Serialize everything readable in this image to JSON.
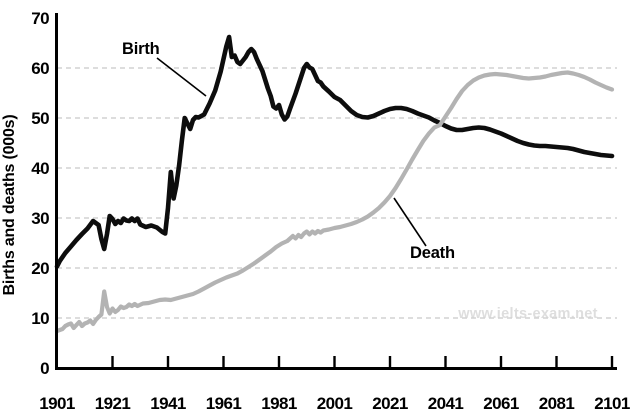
{
  "chart": {
    "y_axis_title": "Births and deaths (000s)",
    "series_labels": {
      "birth": "Birth",
      "death": "Death"
    },
    "watermark": "www.ielts-exam.net",
    "colors": {
      "birth_line": "#0d0d0d",
      "death_line": "#b3b3b3",
      "gridline": "#d2d2d2",
      "axis": "#000000",
      "tick_text": "#000000",
      "watermark": "#dedede"
    }
  },
  "chart_data": {
    "type": "line",
    "title": "",
    "xlabel": "",
    "ylabel": "Births and deaths (000s)",
    "xlim": [
      1901,
      2101
    ],
    "ylim": [
      0,
      70
    ],
    "xticks": [
      1901,
      1921,
      1941,
      1961,
      1981,
      2001,
      2021,
      2041,
      2061,
      2081,
      2101
    ],
    "yticks": [
      0,
      10,
      20,
      30,
      40,
      50,
      60,
      70
    ],
    "grid": "horizontal-dashed",
    "legend_position": "annotated-on-lines",
    "series": [
      {
        "name": "Birth",
        "color": "#0d0d0d",
        "points": [
          [
            1901,
            20.3
          ],
          [
            1902,
            21.4
          ],
          [
            1904,
            23.0
          ],
          [
            1906,
            24.3
          ],
          [
            1908,
            25.6
          ],
          [
            1910,
            26.8
          ],
          [
            1912,
            27.9
          ],
          [
            1914,
            29.4
          ],
          [
            1915,
            29.0
          ],
          [
            1916,
            28.6
          ],
          [
            1917,
            25.8
          ],
          [
            1918,
            23.8
          ],
          [
            1919,
            26.8
          ],
          [
            1920,
            30.4
          ],
          [
            1921,
            29.8
          ],
          [
            1922,
            28.8
          ],
          [
            1923,
            29.4
          ],
          [
            1924,
            29.0
          ],
          [
            1925,
            29.9
          ],
          [
            1926,
            29.5
          ],
          [
            1927,
            29.4
          ],
          [
            1928,
            29.9
          ],
          [
            1929,
            29.4
          ],
          [
            1930,
            29.9
          ],
          [
            1931,
            28.7
          ],
          [
            1933,
            28.2
          ],
          [
            1935,
            28.5
          ],
          [
            1937,
            28.1
          ],
          [
            1939,
            27.2
          ],
          [
            1940,
            26.9
          ],
          [
            1941,
            32.0
          ],
          [
            1942,
            39.2
          ],
          [
            1943,
            33.9
          ],
          [
            1944,
            36.5
          ],
          [
            1945,
            40.5
          ],
          [
            1946,
            45.5
          ],
          [
            1947,
            50.0
          ],
          [
            1948,
            48.9
          ],
          [
            1949,
            47.8
          ],
          [
            1950,
            49.6
          ],
          [
            1951,
            50.2
          ],
          [
            1952,
            50.1
          ],
          [
            1953,
            50.4
          ],
          [
            1954,
            50.7
          ],
          [
            1956,
            52.9
          ],
          [
            1958,
            55.5
          ],
          [
            1960,
            59.3
          ],
          [
            1962,
            64.3
          ],
          [
            1963,
            66.2
          ],
          [
            1964,
            62.2
          ],
          [
            1965,
            62.5
          ],
          [
            1966,
            61.2
          ],
          [
            1967,
            60.8
          ],
          [
            1969,
            62.2
          ],
          [
            1970,
            63.2
          ],
          [
            1971,
            63.8
          ],
          [
            1972,
            63.2
          ],
          [
            1973,
            61.8
          ],
          [
            1975,
            59.4
          ],
          [
            1977,
            55.9
          ],
          [
            1978,
            54.4
          ],
          [
            1979,
            52.3
          ],
          [
            1980,
            51.9
          ],
          [
            1981,
            52.6
          ],
          [
            1982,
            50.7
          ],
          [
            1983,
            49.7
          ],
          [
            1984,
            50.3
          ],
          [
            1985,
            51.9
          ],
          [
            1987,
            54.9
          ],
          [
            1989,
            58.3
          ],
          [
            1990,
            60.0
          ],
          [
            1991,
            60.8
          ],
          [
            1992,
            60.1
          ],
          [
            1993,
            59.8
          ],
          [
            1994,
            58.6
          ],
          [
            1995,
            57.4
          ],
          [
            1996,
            57.1
          ],
          [
            1997,
            56.3
          ],
          [
            1999,
            55.3
          ],
          [
            2001,
            54.2
          ],
          [
            2003,
            53.6
          ],
          [
            2005,
            52.5
          ],
          [
            2007,
            51.4
          ],
          [
            2009,
            50.6
          ],
          [
            2011,
            50.2
          ],
          [
            2013,
            50.1
          ],
          [
            2015,
            50.4
          ],
          [
            2017,
            50.9
          ],
          [
            2019,
            51.4
          ],
          [
            2021,
            51.8
          ],
          [
            2023,
            52.0
          ],
          [
            2025,
            52.0
          ],
          [
            2027,
            51.8
          ],
          [
            2029,
            51.4
          ],
          [
            2031,
            50.9
          ],
          [
            2033,
            50.5
          ],
          [
            2035,
            50.1
          ],
          [
            2037,
            49.5
          ],
          [
            2039,
            49.0
          ],
          [
            2041,
            48.4
          ],
          [
            2043,
            47.9
          ],
          [
            2045,
            47.6
          ],
          [
            2047,
            47.6
          ],
          [
            2049,
            47.8
          ],
          [
            2051,
            48.0
          ],
          [
            2053,
            48.1
          ],
          [
            2055,
            48.0
          ],
          [
            2057,
            47.7
          ],
          [
            2059,
            47.3
          ],
          [
            2061,
            46.9
          ],
          [
            2063,
            46.4
          ],
          [
            2065,
            45.9
          ],
          [
            2067,
            45.4
          ],
          [
            2069,
            45.0
          ],
          [
            2071,
            44.7
          ],
          [
            2073,
            44.5
          ],
          [
            2075,
            44.4
          ],
          [
            2077,
            44.4
          ],
          [
            2079,
            44.3
          ],
          [
            2081,
            44.2
          ],
          [
            2083,
            44.1
          ],
          [
            2085,
            44.0
          ],
          [
            2087,
            43.8
          ],
          [
            2089,
            43.5
          ],
          [
            2091,
            43.2
          ],
          [
            2093,
            43.0
          ],
          [
            2095,
            42.8
          ],
          [
            2097,
            42.6
          ],
          [
            2099,
            42.5
          ],
          [
            2101,
            42.4
          ]
        ]
      },
      {
        "name": "Death",
        "color": "#b3b3b3",
        "points": [
          [
            1901,
            7.4
          ],
          [
            1902,
            7.6
          ],
          [
            1903,
            7.8
          ],
          [
            1904,
            8.4
          ],
          [
            1905,
            8.7
          ],
          [
            1906,
            8.9
          ],
          [
            1907,
            8.0
          ],
          [
            1908,
            8.6
          ],
          [
            1909,
            9.2
          ],
          [
            1910,
            8.4
          ],
          [
            1911,
            8.9
          ],
          [
            1912,
            9.1
          ],
          [
            1913,
            9.5
          ],
          [
            1914,
            8.8
          ],
          [
            1915,
            9.6
          ],
          [
            1916,
            10.2
          ],
          [
            1917,
            10.7
          ],
          [
            1918,
            15.3
          ],
          [
            1919,
            12.2
          ],
          [
            1920,
            10.9
          ],
          [
            1921,
            11.9
          ],
          [
            1922,
            11.2
          ],
          [
            1923,
            11.6
          ],
          [
            1924,
            12.3
          ],
          [
            1925,
            12.0
          ],
          [
            1926,
            12.2
          ],
          [
            1927,
            12.7
          ],
          [
            1928,
            12.4
          ],
          [
            1929,
            12.8
          ],
          [
            1930,
            12.4
          ],
          [
            1932,
            12.9
          ],
          [
            1934,
            13.0
          ],
          [
            1936,
            13.3
          ],
          [
            1938,
            13.6
          ],
          [
            1940,
            13.7
          ],
          [
            1942,
            13.6
          ],
          [
            1944,
            13.9
          ],
          [
            1946,
            14.2
          ],
          [
            1948,
            14.5
          ],
          [
            1950,
            14.8
          ],
          [
            1952,
            15.3
          ],
          [
            1954,
            15.9
          ],
          [
            1956,
            16.5
          ],
          [
            1958,
            17.1
          ],
          [
            1960,
            17.6
          ],
          [
            1962,
            18.1
          ],
          [
            1964,
            18.5
          ],
          [
            1966,
            18.9
          ],
          [
            1968,
            19.5
          ],
          [
            1970,
            20.2
          ],
          [
            1972,
            20.9
          ],
          [
            1974,
            21.7
          ],
          [
            1976,
            22.5
          ],
          [
            1978,
            23.3
          ],
          [
            1980,
            24.2
          ],
          [
            1982,
            24.9
          ],
          [
            1984,
            25.4
          ],
          [
            1985,
            25.9
          ],
          [
            1986,
            26.4
          ],
          [
            1987,
            25.9
          ],
          [
            1988,
            26.6
          ],
          [
            1989,
            26.2
          ],
          [
            1990,
            26.9
          ],
          [
            1991,
            27.3
          ],
          [
            1992,
            26.7
          ],
          [
            1993,
            27.3
          ],
          [
            1994,
            26.9
          ],
          [
            1995,
            27.4
          ],
          [
            1996,
            27.1
          ],
          [
            1997,
            27.5
          ],
          [
            1999,
            27.7
          ],
          [
            2001,
            28.0
          ],
          [
            2003,
            28.2
          ],
          [
            2005,
            28.5
          ],
          [
            2007,
            28.8
          ],
          [
            2009,
            29.2
          ],
          [
            2011,
            29.7
          ],
          [
            2013,
            30.3
          ],
          [
            2015,
            31.1
          ],
          [
            2017,
            32.0
          ],
          [
            2019,
            33.1
          ],
          [
            2021,
            34.4
          ],
          [
            2023,
            36.0
          ],
          [
            2025,
            37.8
          ],
          [
            2027,
            39.7
          ],
          [
            2029,
            41.7
          ],
          [
            2031,
            43.6
          ],
          [
            2033,
            45.4
          ],
          [
            2035,
            46.9
          ],
          [
            2037,
            48.1
          ],
          [
            2039,
            48.6
          ],
          [
            2041,
            50.3
          ],
          [
            2043,
            52.0
          ],
          [
            2045,
            53.8
          ],
          [
            2047,
            55.4
          ],
          [
            2049,
            56.6
          ],
          [
            2051,
            57.5
          ],
          [
            2053,
            58.1
          ],
          [
            2055,
            58.5
          ],
          [
            2057,
            58.7
          ],
          [
            2059,
            58.8
          ],
          [
            2061,
            58.7
          ],
          [
            2063,
            58.6
          ],
          [
            2065,
            58.4
          ],
          [
            2067,
            58.2
          ],
          [
            2069,
            58.0
          ],
          [
            2071,
            57.9
          ],
          [
            2073,
            58.0
          ],
          [
            2075,
            58.1
          ],
          [
            2077,
            58.3
          ],
          [
            2079,
            58.6
          ],
          [
            2081,
            58.8
          ],
          [
            2083,
            59.0
          ],
          [
            2085,
            59.1
          ],
          [
            2087,
            58.9
          ],
          [
            2089,
            58.6
          ],
          [
            2091,
            58.2
          ],
          [
            2093,
            57.7
          ],
          [
            2095,
            57.1
          ],
          [
            2097,
            56.6
          ],
          [
            2099,
            56.1
          ],
          [
            2101,
            55.7
          ]
        ]
      }
    ],
    "annotations": [
      {
        "label": "Birth",
        "points_to_year": 1955
      },
      {
        "label": "Death",
        "points_to_year": 2022
      }
    ]
  }
}
